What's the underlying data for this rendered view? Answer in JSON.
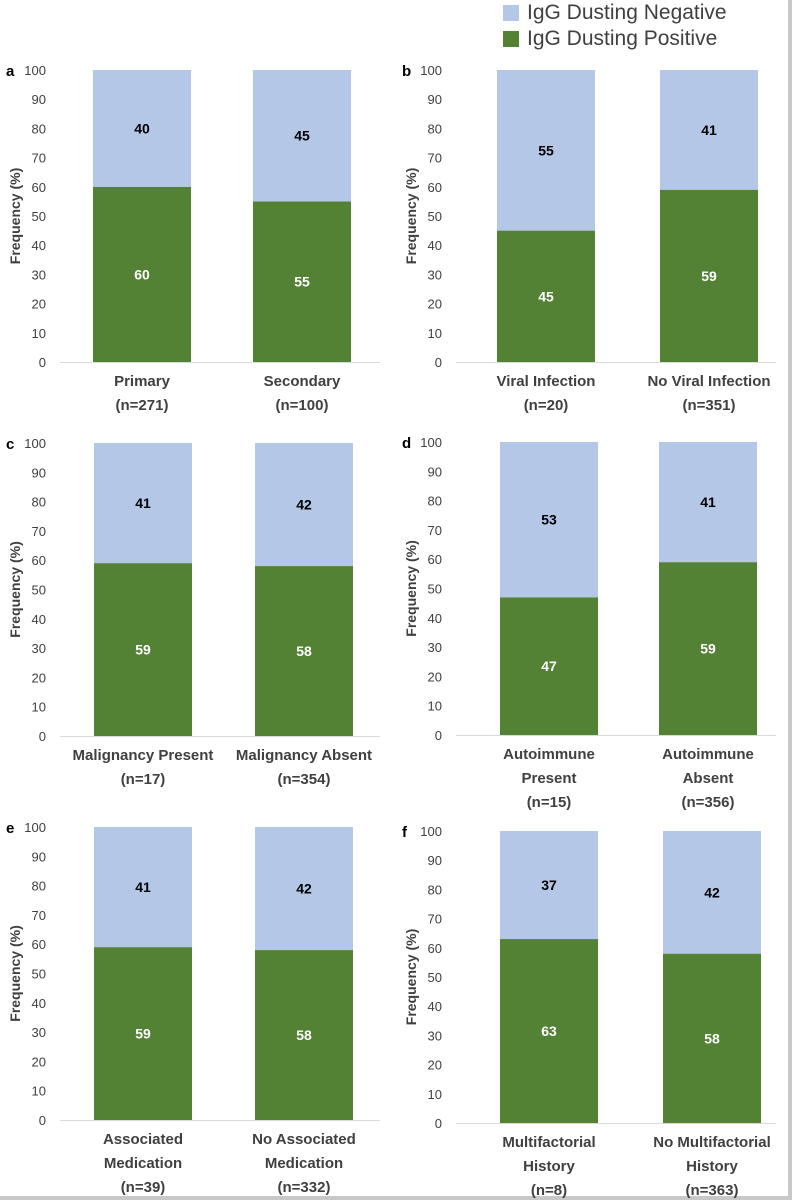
{
  "legend": [
    {
      "label": "IgG Dusting Negative",
      "color": "#b4c7e7"
    },
    {
      "label": "IgG Dusting Positive",
      "color": "#548235"
    }
  ],
  "chart_data": [
    {
      "panel_label": "a",
      "type": "bar",
      "stacked": true,
      "ylabel": "Frequency (%)",
      "ylim": [
        0,
        100
      ],
      "yticks": [
        0,
        10,
        20,
        30,
        40,
        50,
        60,
        70,
        80,
        90,
        100
      ],
      "categories": [
        [
          "Primary",
          "(n=271)"
        ],
        [
          "Secondary",
          "(n=100)"
        ]
      ],
      "series": [
        {
          "name": "IgG Dusting Positive",
          "values": [
            60,
            55
          ]
        },
        {
          "name": "IgG Dusting Negative",
          "values": [
            40,
            45
          ]
        }
      ]
    },
    {
      "panel_label": "b",
      "type": "bar",
      "stacked": true,
      "ylabel": "Frequency (%)",
      "ylim": [
        0,
        100
      ],
      "yticks": [
        0,
        10,
        20,
        30,
        40,
        50,
        60,
        70,
        80,
        90,
        100
      ],
      "categories": [
        [
          "Viral Infection",
          "(n=20)"
        ],
        [
          "No Viral Infection",
          "(n=351)"
        ]
      ],
      "series": [
        {
          "name": "IgG Dusting Positive",
          "values": [
            45,
            59
          ]
        },
        {
          "name": "IgG Dusting Negative",
          "values": [
            55,
            41
          ]
        }
      ]
    },
    {
      "panel_label": "c",
      "type": "bar",
      "stacked": true,
      "ylabel": "Frequency (%)",
      "ylim": [
        0,
        100
      ],
      "yticks": [
        0,
        10,
        20,
        30,
        40,
        50,
        60,
        70,
        80,
        90,
        100
      ],
      "categories": [
        [
          "Malignancy Present",
          "(n=17)"
        ],
        [
          "Malignancy Absent",
          "(n=354)"
        ]
      ],
      "series": [
        {
          "name": "IgG Dusting Positive",
          "values": [
            59,
            58
          ]
        },
        {
          "name": "IgG Dusting Negative",
          "values": [
            41,
            42
          ]
        }
      ]
    },
    {
      "panel_label": "d",
      "type": "bar",
      "stacked": true,
      "ylabel": "Frequency (%)",
      "ylim": [
        0,
        100
      ],
      "yticks": [
        0,
        10,
        20,
        30,
        40,
        50,
        60,
        70,
        80,
        90,
        100
      ],
      "categories": [
        [
          "Autoimmune",
          "Present",
          "(n=15)"
        ],
        [
          "Autoimmune",
          "Absent",
          "(n=356)"
        ]
      ],
      "series": [
        {
          "name": "IgG Dusting Positive",
          "values": [
            47,
            59
          ]
        },
        {
          "name": "IgG Dusting Negative",
          "values": [
            53,
            41
          ]
        }
      ]
    },
    {
      "panel_label": "e",
      "type": "bar",
      "stacked": true,
      "ylabel": "Frequency (%)",
      "ylim": [
        0,
        100
      ],
      "yticks": [
        0,
        10,
        20,
        30,
        40,
        50,
        60,
        70,
        80,
        90,
        100
      ],
      "categories": [
        [
          "Associated",
          "Medication",
          "(n=39)"
        ],
        [
          "No Associated",
          "Medication",
          "(n=332)"
        ]
      ],
      "series": [
        {
          "name": "IgG Dusting Positive",
          "values": [
            59,
            58
          ]
        },
        {
          "name": "IgG Dusting Negative",
          "values": [
            41,
            42
          ]
        }
      ]
    },
    {
      "panel_label": "f",
      "type": "bar",
      "stacked": true,
      "ylabel": "Frequency (%)",
      "ylim": [
        0,
        100
      ],
      "yticks": [
        0,
        10,
        20,
        30,
        40,
        50,
        60,
        70,
        80,
        90,
        100
      ],
      "categories": [
        [
          "Multifactorial",
          "History",
          "(n=8)"
        ],
        [
          "No Multifactorial",
          "History",
          "(n=363)"
        ]
      ],
      "series": [
        {
          "name": "IgG Dusting Positive",
          "values": [
            63,
            58
          ]
        },
        {
          "name": "IgG Dusting Negative",
          "values": [
            37,
            42
          ]
        }
      ]
    }
  ]
}
